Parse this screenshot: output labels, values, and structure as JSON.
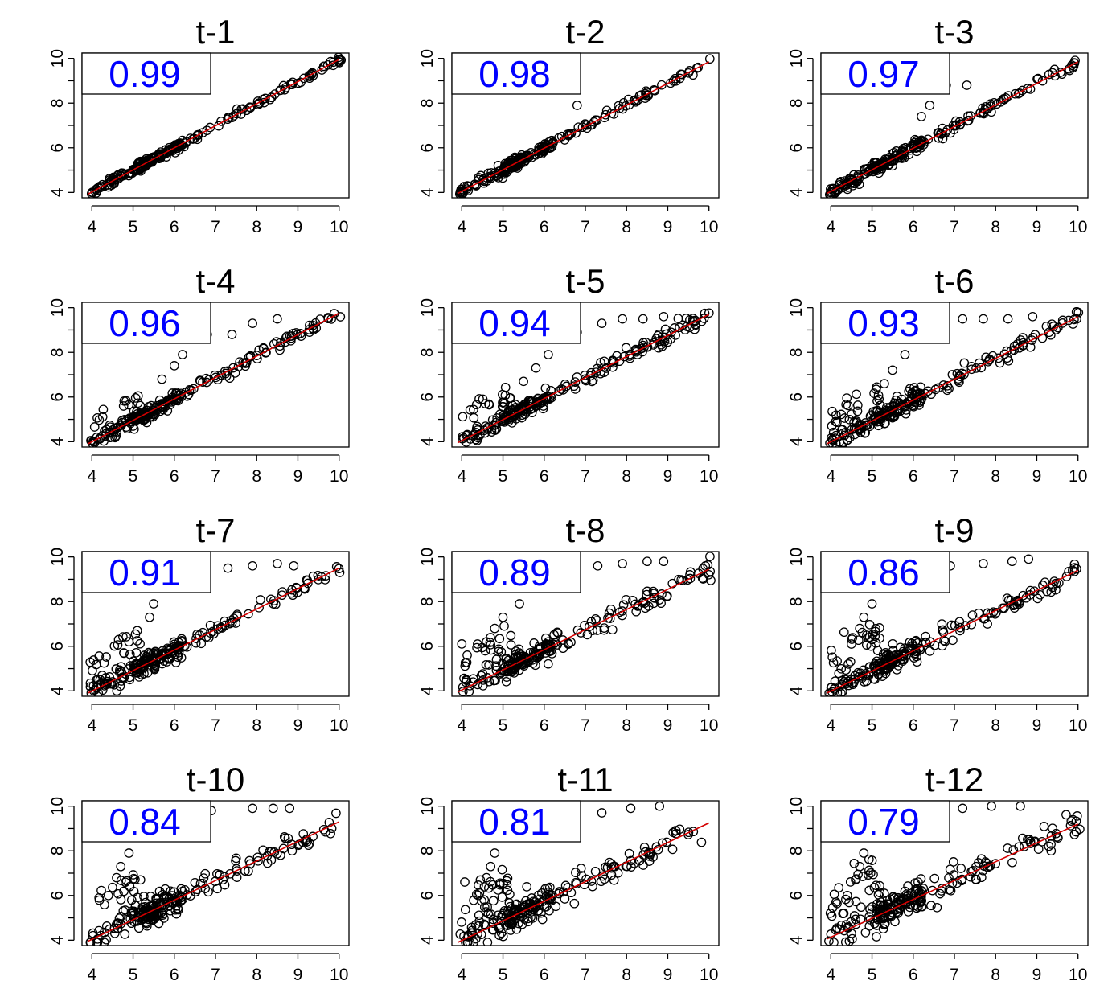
{
  "colors": {
    "points": "#000000",
    "fit_line": "#d40000",
    "correlation_text": "#0000ff",
    "axes": "#000000",
    "background": "#ffffff"
  },
  "chart_data": [
    {
      "type": "scatter",
      "title": "t-1",
      "correlation": "0.99",
      "lag": 1,
      "xlim": [
        4,
        10
      ],
      "ylim": [
        4,
        10
      ],
      "x_ticks": [
        "4",
        "5",
        "6",
        "7",
        "8",
        "9",
        "10"
      ],
      "y_ticks": [
        "4",
        "6",
        "8",
        "10"
      ],
      "fit_line": {
        "x": [
          3.9,
          10.0
        ],
        "y": [
          3.92,
          9.95
        ]
      },
      "outliers": {
        "x": [],
        "y": []
      }
    },
    {
      "type": "scatter",
      "title": "t-2",
      "correlation": "0.98",
      "lag": 2,
      "xlim": [
        4,
        10
      ],
      "ylim": [
        4,
        10
      ],
      "x_ticks": [
        "4",
        "5",
        "6",
        "7",
        "8",
        "9",
        "10"
      ],
      "y_ticks": [
        "4",
        "6",
        "8",
        "10"
      ],
      "fit_line": {
        "x": [
          3.9,
          10.0
        ],
        "y": [
          3.95,
          9.85
        ]
      },
      "outliers": {
        "x": [
          6.8
        ],
        "y": [
          7.9
        ]
      }
    },
    {
      "type": "scatter",
      "title": "t-3",
      "correlation": "0.97",
      "lag": 3,
      "xlim": [
        4,
        10
      ],
      "ylim": [
        4,
        10
      ],
      "x_ticks": [
        "4",
        "5",
        "6",
        "7",
        "8",
        "9",
        "10"
      ],
      "y_ticks": [
        "4",
        "6",
        "8",
        "10"
      ],
      "fit_line": {
        "x": [
          3.9,
          10.0
        ],
        "y": [
          3.95,
          9.85
        ]
      },
      "outliers": {
        "x": [
          6.4,
          6.8,
          7.3,
          6.2
        ],
        "y": [
          7.9,
          8.8,
          8.8,
          7.4
        ]
      }
    },
    {
      "type": "scatter",
      "title": "t-4",
      "correlation": "0.96",
      "lag": 4,
      "xlim": [
        4,
        10
      ],
      "ylim": [
        4,
        10
      ],
      "x_ticks": [
        "4",
        "5",
        "6",
        "7",
        "8",
        "9",
        "10"
      ],
      "y_ticks": [
        "4",
        "6",
        "8",
        "10"
      ],
      "fit_line": {
        "x": [
          3.9,
          10.0
        ],
        "y": [
          3.9,
          9.75
        ]
      },
      "outliers": {
        "x": [
          6.2,
          6.8,
          7.4,
          7.9,
          8.5,
          6.0,
          5.7
        ],
        "y": [
          7.9,
          8.8,
          8.8,
          9.3,
          9.5,
          7.4,
          6.8
        ]
      }
    },
    {
      "type": "scatter",
      "title": "t-5",
      "correlation": "0.94",
      "lag": 5,
      "xlim": [
        4,
        10
      ],
      "ylim": [
        4,
        10
      ],
      "x_ticks": [
        "4",
        "5",
        "6",
        "7",
        "8",
        "9",
        "10"
      ],
      "y_ticks": [
        "4",
        "6",
        "8",
        "10"
      ],
      "fit_line": {
        "x": [
          3.9,
          10.0
        ],
        "y": [
          3.95,
          9.7
        ]
      },
      "outliers": {
        "x": [
          6.1,
          6.8,
          7.4,
          7.9,
          8.4,
          8.9,
          5.8,
          5.5
        ],
        "y": [
          7.9,
          8.9,
          9.3,
          9.5,
          9.5,
          9.6,
          7.3,
          6.7
        ]
      }
    },
    {
      "type": "scatter",
      "title": "t-6",
      "correlation": "0.93",
      "lag": 6,
      "xlim": [
        4,
        10
      ],
      "ylim": [
        4,
        10
      ],
      "x_ticks": [
        "4",
        "5",
        "6",
        "7",
        "8",
        "9",
        "10"
      ],
      "y_ticks": [
        "4",
        "6",
        "8",
        "10"
      ],
      "fit_line": {
        "x": [
          3.9,
          10.0
        ],
        "y": [
          3.9,
          9.6
        ]
      },
      "outliers": {
        "x": [
          5.8,
          6.5,
          7.2,
          7.7,
          8.3,
          8.9,
          5.5,
          5.3
        ],
        "y": [
          7.9,
          9.3,
          9.5,
          9.5,
          9.5,
          9.6,
          7.2,
          6.6
        ]
      }
    },
    {
      "type": "scatter",
      "title": "t-7",
      "correlation": "0.91",
      "lag": 7,
      "xlim": [
        4,
        10
      ],
      "ylim": [
        4,
        10
      ],
      "x_ticks": [
        "4",
        "5",
        "6",
        "7",
        "8",
        "9",
        "10"
      ],
      "y_ticks": [
        "4",
        "6",
        "8",
        "10"
      ],
      "fit_line": {
        "x": [
          3.9,
          10.0
        ],
        "y": [
          3.9,
          9.5
        ]
      },
      "outliers": {
        "x": [
          5.5,
          6.4,
          7.3,
          7.9,
          8.5,
          8.9,
          5.4,
          5.1,
          4.9
        ],
        "y": [
          7.9,
          9.3,
          9.5,
          9.6,
          9.7,
          9.6,
          7.3,
          6.7,
          6.2
        ]
      }
    },
    {
      "type": "scatter",
      "title": "t-8",
      "correlation": "0.89",
      "lag": 8,
      "xlim": [
        4,
        10
      ],
      "ylim": [
        4,
        10
      ],
      "x_ticks": [
        "4",
        "5",
        "6",
        "7",
        "8",
        "9",
        "10"
      ],
      "y_ticks": [
        "4",
        "6",
        "8",
        "10"
      ],
      "fit_line": {
        "x": [
          3.9,
          10.0
        ],
        "y": [
          3.95,
          9.45
        ]
      },
      "outliers": {
        "x": [
          5.4,
          6.3,
          7.3,
          7.9,
          8.5,
          8.9,
          5.0,
          4.8,
          4.6
        ],
        "y": [
          7.9,
          9.3,
          9.6,
          9.7,
          9.8,
          9.8,
          7.3,
          6.8,
          6.2
        ]
      }
    },
    {
      "type": "scatter",
      "title": "t-9",
      "correlation": "0.86",
      "lag": 9,
      "xlim": [
        4,
        10
      ],
      "ylim": [
        4,
        10
      ],
      "x_ticks": [
        "4",
        "5",
        "6",
        "7",
        "8",
        "9",
        "10"
      ],
      "y_ticks": [
        "4",
        "6",
        "8",
        "10"
      ],
      "fit_line": {
        "x": [
          3.9,
          10.0
        ],
        "y": [
          3.9,
          9.4
        ]
      },
      "outliers": {
        "x": [
          5.0,
          6.0,
          6.9,
          7.7,
          8.4,
          8.8,
          4.8,
          4.7,
          4.5
        ],
        "y": [
          7.9,
          9.4,
          9.6,
          9.7,
          9.8,
          9.9,
          7.3,
          6.8,
          6.1
        ]
      }
    },
    {
      "type": "scatter",
      "title": "t-10",
      "correlation": "0.84",
      "lag": 10,
      "xlim": [
        4,
        10
      ],
      "ylim": [
        4,
        10
      ],
      "x_ticks": [
        "4",
        "5",
        "6",
        "7",
        "8",
        "9",
        "10"
      ],
      "y_ticks": [
        "4",
        "6",
        "8",
        "10"
      ],
      "fit_line": {
        "x": [
          3.9,
          10.0
        ],
        "y": [
          3.95,
          9.3
        ]
      },
      "outliers": {
        "x": [
          4.9,
          5.8,
          6.9,
          7.9,
          8.4,
          8.8,
          4.7,
          4.6,
          4.4
        ],
        "y": [
          7.9,
          9.4,
          9.8,
          9.9,
          9.9,
          9.9,
          7.3,
          6.8,
          6.0
        ]
      }
    },
    {
      "type": "scatter",
      "title": "t-11",
      "correlation": "0.81",
      "lag": 11,
      "xlim": [
        4,
        10
      ],
      "ylim": [
        4,
        10
      ],
      "x_ticks": [
        "4",
        "5",
        "6",
        "7",
        "8",
        "9",
        "10"
      ],
      "y_ticks": [
        "4",
        "6",
        "8",
        "10"
      ],
      "fit_line": {
        "x": [
          3.9,
          10.0
        ],
        "y": [
          3.9,
          9.25
        ]
      },
      "outliers": {
        "x": [
          4.8,
          5.7,
          6.6,
          7.4,
          8.1,
          8.8,
          4.7,
          4.6,
          4.4
        ],
        "y": [
          7.9,
          9.5,
          9.6,
          9.7,
          9.9,
          10.0,
          7.3,
          6.8,
          6.0
        ]
      }
    },
    {
      "type": "scatter",
      "title": "t-12",
      "correlation": "0.79",
      "lag": 12,
      "xlim": [
        4,
        10
      ],
      "ylim": [
        4,
        10
      ],
      "x_ticks": [
        "4",
        "5",
        "6",
        "7",
        "8",
        "9",
        "10"
      ],
      "y_ticks": [
        "4",
        "6",
        "8",
        "10"
      ],
      "fit_line": {
        "x": [
          3.9,
          10.0
        ],
        "y": [
          4.05,
          9.2
        ]
      },
      "outliers": {
        "x": [
          4.8,
          5.6,
          6.4,
          7.2,
          7.9,
          8.6,
          4.7,
          4.6,
          4.4
        ],
        "y": [
          7.9,
          9.5,
          9.8,
          9.9,
          10.0,
          10.0,
          7.3,
          6.7,
          6.0
        ]
      }
    }
  ]
}
